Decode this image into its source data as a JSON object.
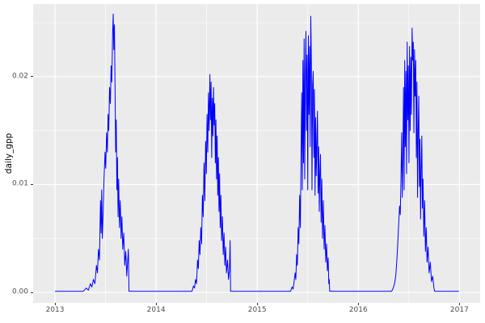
{
  "figure": {
    "background": "#FFFFFF",
    "panel_background": "#EBEBEB",
    "grid_color": "#FFFFFF",
    "axis_text_color": "#4D4D4D",
    "axis_title_color": "#000000",
    "tick_mark_color": "#333333",
    "line_color": "#0000FF"
  },
  "chart_data": {
    "type": "line",
    "title": "",
    "xlabel": "",
    "ylabel": "daily_gpp",
    "legend": "none",
    "grid": "on",
    "x_domain": [
      2012.784,
      2017.205
    ],
    "y_domain": [
      -0.00097,
      0.02673
    ],
    "x_major_breaks": [
      {
        "value": 2013,
        "label": "2013"
      },
      {
        "value": 2014,
        "label": "2014"
      },
      {
        "value": 2015,
        "label": "2015"
      },
      {
        "value": 2016,
        "label": "2016"
      },
      {
        "value": 2017,
        "label": "2017"
      }
    ],
    "x_minor_breaks": [
      2013.5,
      2014.5,
      2015.5,
      2016.5
    ],
    "y_major_breaks": [
      {
        "value": 0.0,
        "label": "0.00"
      },
      {
        "value": 0.01,
        "label": "0.01"
      },
      {
        "value": 0.02,
        "label": "0.02"
      }
    ],
    "y_minor_breaks": [
      0.005,
      0.015,
      0.025
    ],
    "series": [
      {
        "name": "daily_gpp",
        "color": "#0000FF",
        "points": [
          [
            2013.0,
            0.0001
          ],
          [
            2013.28,
            0.0001
          ],
          [
            2013.31,
            0.0004
          ],
          [
            2013.33,
            0.0002
          ],
          [
            2013.35,
            0.0008
          ],
          [
            2013.365,
            0.0005
          ],
          [
            2013.38,
            0.0012
          ],
          [
            2013.395,
            0.0008
          ],
          [
            2013.41,
            0.0025
          ],
          [
            2013.42,
            0.0018
          ],
          [
            2013.43,
            0.004
          ],
          [
            2013.44,
            0.003
          ],
          [
            2013.45,
            0.0085
          ],
          [
            2013.456,
            0.0055
          ],
          [
            2013.462,
            0.0095
          ],
          [
            2013.468,
            0.005
          ],
          [
            2013.475,
            0.007
          ],
          [
            2013.485,
            0.0105
          ],
          [
            2013.495,
            0.013
          ],
          [
            2013.502,
            0.0115
          ],
          [
            2013.51,
            0.0148
          ],
          [
            2013.518,
            0.013
          ],
          [
            2013.525,
            0.0165
          ],
          [
            2013.532,
            0.015
          ],
          [
            2013.54,
            0.019
          ],
          [
            2013.548,
            0.0175
          ],
          [
            2013.555,
            0.021
          ],
          [
            2013.562,
            0.0195
          ],
          [
            2013.57,
            0.024
          ],
          [
            2013.576,
            0.0258
          ],
          [
            2013.582,
            0.0225
          ],
          [
            2013.588,
            0.0248
          ],
          [
            2013.594,
            0.019
          ],
          [
            2013.6,
            0.013
          ],
          [
            2013.606,
            0.016
          ],
          [
            2013.612,
            0.0095
          ],
          [
            2013.618,
            0.0125
          ],
          [
            2013.624,
            0.007
          ],
          [
            2013.63,
            0.0105
          ],
          [
            2013.638,
            0.006
          ],
          [
            2013.646,
            0.0085
          ],
          [
            2013.654,
            0.005
          ],
          [
            2013.662,
            0.007
          ],
          [
            2013.67,
            0.004
          ],
          [
            2013.68,
            0.0055
          ],
          [
            2013.69,
            0.0025
          ],
          [
            2013.7,
            0.0038
          ],
          [
            2013.71,
            0.0015
          ],
          [
            2013.718,
            0.0028
          ],
          [
            2013.726,
            0.004
          ],
          [
            2013.732,
            0.0001
          ],
          [
            2014.355,
            0.0001
          ],
          [
            2014.37,
            0.0006
          ],
          [
            2014.38,
            0.0004
          ],
          [
            2014.39,
            0.0012
          ],
          [
            2014.4,
            0.0008
          ],
          [
            2014.41,
            0.003
          ],
          [
            2014.418,
            0.0022
          ],
          [
            2014.426,
            0.0048
          ],
          [
            2014.434,
            0.0035
          ],
          [
            2014.442,
            0.006
          ],
          [
            2014.45,
            0.0045
          ],
          [
            2014.458,
            0.009
          ],
          [
            2014.466,
            0.007
          ],
          [
            2014.474,
            0.012
          ],
          [
            2014.482,
            0.0085
          ],
          [
            2014.49,
            0.014
          ],
          [
            2014.497,
            0.011
          ],
          [
            2014.504,
            0.0165
          ],
          [
            2014.511,
            0.013
          ],
          [
            2014.518,
            0.0185
          ],
          [
            2014.525,
            0.015
          ],
          [
            2014.532,
            0.0202
          ],
          [
            2014.538,
            0.016
          ],
          [
            2014.544,
            0.0195
          ],
          [
            2014.55,
            0.0125
          ],
          [
            2014.556,
            0.018
          ],
          [
            2014.562,
            0.0145
          ],
          [
            2014.568,
            0.019
          ],
          [
            2014.574,
            0.0155
          ],
          [
            2014.58,
            0.0175
          ],
          [
            2014.586,
            0.012
          ],
          [
            2014.592,
            0.016
          ],
          [
            2014.598,
            0.0105
          ],
          [
            2014.604,
            0.0145
          ],
          [
            2014.61,
            0.009
          ],
          [
            2014.616,
            0.0125
          ],
          [
            2014.622,
            0.0075
          ],
          [
            2014.628,
            0.011
          ],
          [
            2014.634,
            0.006
          ],
          [
            2014.641,
            0.009
          ],
          [
            2014.648,
            0.0048
          ],
          [
            2014.656,
            0.007
          ],
          [
            2014.664,
            0.0035
          ],
          [
            2014.672,
            0.0055
          ],
          [
            2014.68,
            0.0025
          ],
          [
            2014.688,
            0.0042
          ],
          [
            2014.696,
            0.0018
          ],
          [
            2014.706,
            0.003
          ],
          [
            2014.716,
            0.0012
          ],
          [
            2014.725,
            0.002
          ],
          [
            2014.732,
            0.0048
          ],
          [
            2014.737,
            0.0001
          ],
          [
            2015.33,
            0.0001
          ],
          [
            2015.345,
            0.0005
          ],
          [
            2015.355,
            0.0003
          ],
          [
            2015.365,
            0.001
          ],
          [
            2015.375,
            0.0018
          ],
          [
            2015.382,
            0.0012
          ],
          [
            2015.39,
            0.0035
          ],
          [
            2015.397,
            0.0025
          ],
          [
            2015.405,
            0.006
          ],
          [
            2015.412,
            0.0045
          ],
          [
            2015.42,
            0.009
          ],
          [
            2015.427,
            0.006
          ],
          [
            2015.434,
            0.013
          ],
          [
            2015.44,
            0.0185
          ],
          [
            2015.446,
            0.0095
          ],
          [
            2015.452,
            0.0215
          ],
          [
            2015.458,
            0.012
          ],
          [
            2015.464,
            0.0235
          ],
          [
            2015.47,
            0.0105
          ],
          [
            2015.476,
            0.02
          ],
          [
            2015.482,
            0.0242
          ],
          [
            2015.488,
            0.015
          ],
          [
            2015.494,
            0.022
          ],
          [
            2015.5,
            0.0095
          ],
          [
            2015.506,
            0.0238
          ],
          [
            2015.512,
            0.0165
          ],
          [
            2015.518,
            0.0228
          ],
          [
            2015.524,
            0.0135
          ],
          [
            2015.53,
            0.0256
          ],
          [
            2015.536,
            0.0212
          ],
          [
            2015.542,
            0.0095
          ],
          [
            2015.548,
            0.0192
          ],
          [
            2015.554,
            0.0205
          ],
          [
            2015.56,
            0.0125
          ],
          [
            2015.566,
            0.0188
          ],
          [
            2015.572,
            0.009
          ],
          [
            2015.578,
            0.0162
          ],
          [
            2015.584,
            0.0108
          ],
          [
            2015.59,
            0.0138
          ],
          [
            2015.596,
            0.0168
          ],
          [
            2015.602,
            0.0092
          ],
          [
            2015.608,
            0.0135
          ],
          [
            2015.614,
            0.0075
          ],
          [
            2015.62,
            0.0112
          ],
          [
            2015.626,
            0.0128
          ],
          [
            2015.632,
            0.0065
          ],
          [
            2015.639,
            0.0105
          ],
          [
            2015.646,
            0.005
          ],
          [
            2015.654,
            0.0085
          ],
          [
            2015.662,
            0.004
          ],
          [
            2015.67,
            0.0062
          ],
          [
            2015.678,
            0.0028
          ],
          [
            2015.686,
            0.0045
          ],
          [
            2015.694,
            0.002
          ],
          [
            2015.702,
            0.0032
          ],
          [
            2015.708,
            0.0008
          ],
          [
            2015.713,
            0.0012
          ],
          [
            2015.717,
            0.0001
          ],
          [
            2016.33,
            0.0001
          ],
          [
            2016.345,
            0.0004
          ],
          [
            2016.358,
            0.0008
          ],
          [
            2016.37,
            0.0015
          ],
          [
            2016.38,
            0.0028
          ],
          [
            2016.39,
            0.0045
          ],
          [
            2016.4,
            0.0065
          ],
          [
            2016.408,
            0.008
          ],
          [
            2016.415,
            0.0072
          ],
          [
            2016.422,
            0.0105
          ],
          [
            2016.429,
            0.0148
          ],
          [
            2016.435,
            0.0088
          ],
          [
            2016.441,
            0.0125
          ],
          [
            2016.447,
            0.019
          ],
          [
            2016.453,
            0.0095
          ],
          [
            2016.459,
            0.0215
          ],
          [
            2016.465,
            0.0135
          ],
          [
            2016.471,
            0.0205
          ],
          [
            2016.477,
            0.011
          ],
          [
            2016.483,
            0.0232
          ],
          [
            2016.489,
            0.016
          ],
          [
            2016.495,
            0.021
          ],
          [
            2016.501,
            0.012
          ],
          [
            2016.507,
            0.0228
          ],
          [
            2016.513,
            0.015
          ],
          [
            2016.519,
            0.0218
          ],
          [
            2016.525,
            0.0165
          ],
          [
            2016.532,
            0.0245
          ],
          [
            2016.538,
            0.0215
          ],
          [
            2016.544,
            0.0232
          ],
          [
            2016.55,
            0.0148
          ],
          [
            2016.556,
            0.0225
          ],
          [
            2016.562,
            0.0182
          ],
          [
            2016.568,
            0.0215
          ],
          [
            2016.574,
            0.0125
          ],
          [
            2016.58,
            0.0195
          ],
          [
            2016.586,
            0.0088
          ],
          [
            2016.592,
            0.015
          ],
          [
            2016.598,
            0.0182
          ],
          [
            2016.604,
            0.0098
          ],
          [
            2016.61,
            0.0142
          ],
          [
            2016.616,
            0.0068
          ],
          [
            2016.622,
            0.0115
          ],
          [
            2016.628,
            0.0145
          ],
          [
            2016.634,
            0.0078
          ],
          [
            2016.64,
            0.0105
          ],
          [
            2016.648,
            0.0052
          ],
          [
            2016.656,
            0.0085
          ],
          [
            2016.664,
            0.0038
          ],
          [
            2016.672,
            0.006
          ],
          [
            2016.68,
            0.0028
          ],
          [
            2016.69,
            0.0042
          ],
          [
            2016.7,
            0.0018
          ],
          [
            2016.712,
            0.0028
          ],
          [
            2016.724,
            0.001
          ],
          [
            2016.736,
            0.0015
          ],
          [
            2016.748,
            0.0004
          ],
          [
            2016.756,
            0.0001
          ],
          [
            2016.995,
            0.0001
          ]
        ]
      }
    ]
  }
}
